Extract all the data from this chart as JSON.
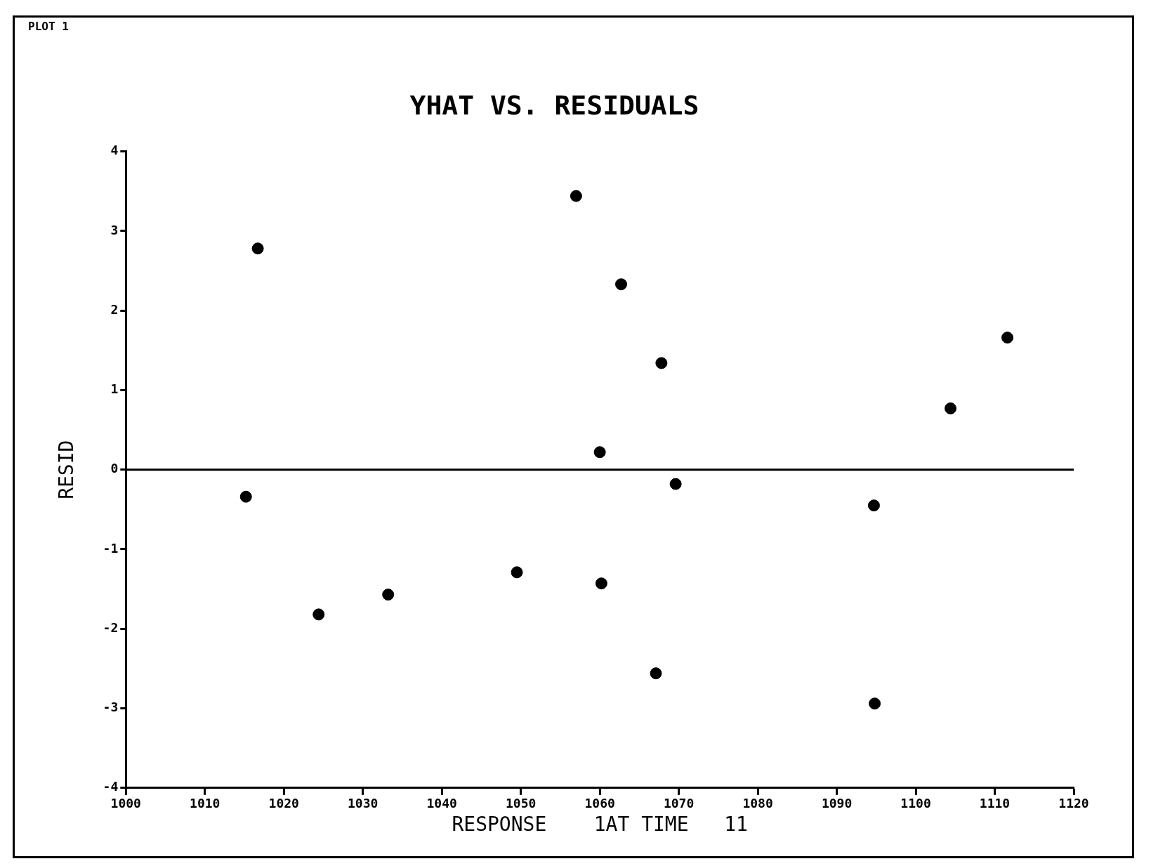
{
  "chart_data": {
    "type": "scatter",
    "title": "YHAT VS. RESIDUALS",
    "xlabel": "RESPONSE    1AT TIME   11",
    "ylabel": "RESID",
    "annotations": [
      "PLOT 1"
    ],
    "x": [
      1015.2,
      1016.7,
      1024.4,
      1033.2,
      1049.5,
      1057.0,
      1060.0,
      1060.2,
      1062.7,
      1067.1,
      1067.8,
      1069.6,
      1094.7,
      1094.8,
      1104.4,
      1111.6
    ],
    "series": [
      {
        "color": "#000000",
        "values": [
          -0.34,
          2.78,
          -1.82,
          -1.57,
          -1.29,
          3.44,
          0.22,
          -1.43,
          2.33,
          -2.56,
          1.34,
          -0.18,
          -0.45,
          -2.94,
          0.77,
          1.66
        ]
      }
    ],
    "xlim": [
      1000,
      1120
    ],
    "xticks": [
      1000,
      1010,
      1020,
      1030,
      1040,
      1050,
      1060,
      1070,
      1080,
      1090,
      1100,
      1110,
      1120
    ],
    "ylim": [
      -4,
      4
    ],
    "yticks": [
      -4,
      -3,
      -2,
      -1,
      0,
      1,
      2,
      3,
      4
    ],
    "ref_lines": [
      {
        "axis": "y",
        "value": 0,
        "color": "#000000"
      }
    ],
    "grid": false,
    "legend": false,
    "marker": "circle"
  }
}
